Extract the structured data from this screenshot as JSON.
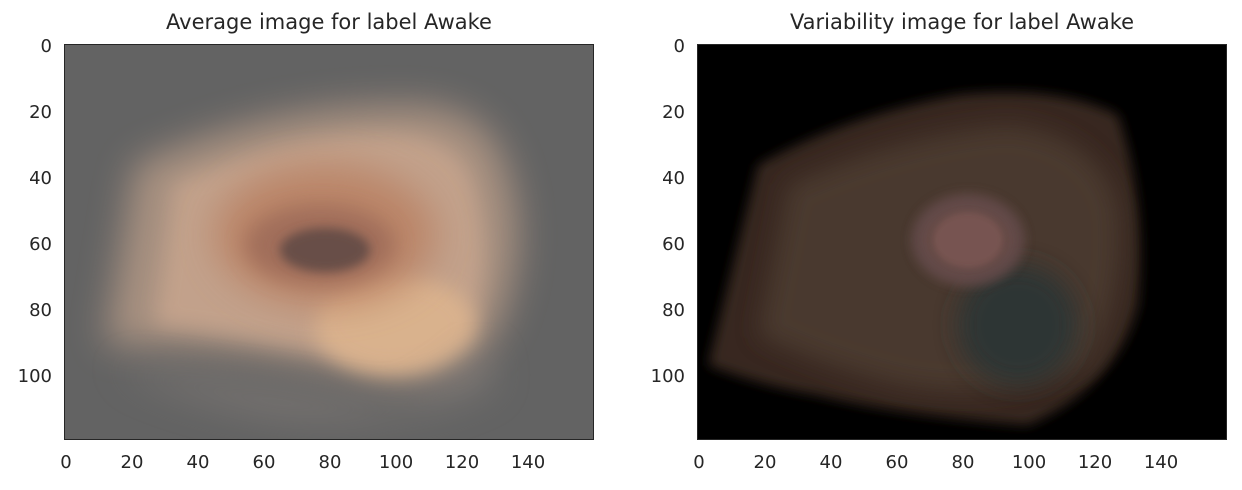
{
  "chart_data": [
    {
      "type": "heatmap",
      "title": "Average image for label Awake",
      "background_color": "#636363",
      "x_ticks": [
        0,
        20,
        40,
        60,
        80,
        100,
        120,
        140
      ],
      "y_ticks": [
        0,
        20,
        40,
        60,
        80,
        100
      ],
      "xlim": [
        0,
        160
      ],
      "ylim": [
        120,
        0
      ],
      "grid": false
    },
    {
      "type": "heatmap",
      "title": "Variability image for label Awake",
      "background_color": "#000000",
      "x_ticks": [
        0,
        20,
        40,
        60,
        80,
        100,
        120,
        140
      ],
      "y_ticks": [
        0,
        20,
        40,
        60,
        80,
        100
      ],
      "xlim": [
        0,
        160
      ],
      "ylim": [
        120,
        0
      ],
      "grid": false
    }
  ]
}
